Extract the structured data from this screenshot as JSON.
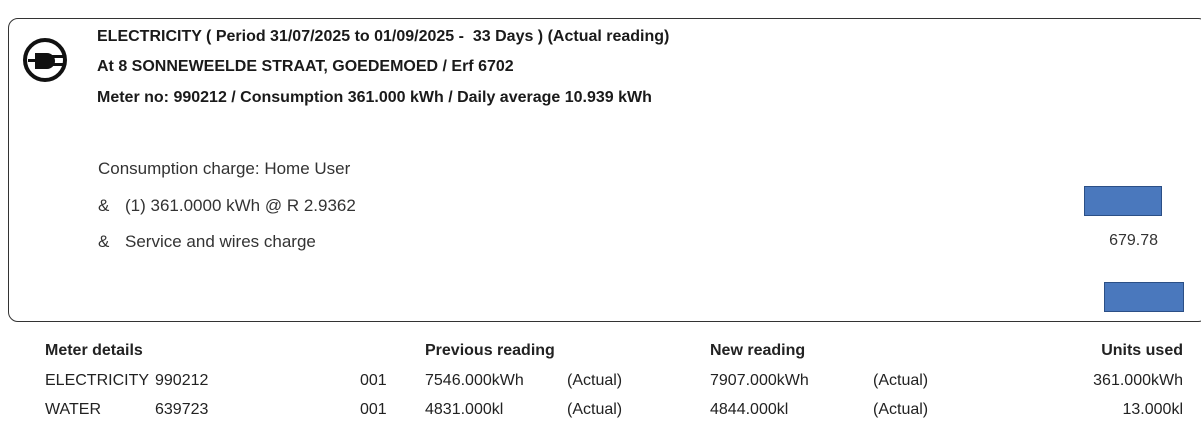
{
  "charge_section": {
    "title": "ELECTRICITY ( Period 31/07/2025 to 01/09/2025 -  33 Days ) (Actual reading)",
    "address": "At 8 SONNEWEELDE STRAAT, GOEDEMOED / Erf 6702",
    "meter_line": "Meter no: 990212 / Consumption 361.000 kWh / Daily average 10.939 kWh",
    "charge_type": "Consumption charge: Home User",
    "lines": [
      {
        "marker": "&",
        "description": "(1) 361.0000 kWh @ R 2.9362"
      },
      {
        "marker": "&",
        "description": "Service and wires charge",
        "amount": "679.78"
      }
    ]
  },
  "meter_table": {
    "headers": [
      "Meter details",
      "Previous reading",
      "New reading",
      "Units used"
    ],
    "rows": [
      [
        "ELECTRICITY",
        "990212",
        "001",
        "7546.000kWh",
        "(Actual)",
        "7907.000kWh",
        "(Actual)",
        "361.000kWh"
      ],
      [
        "WATER",
        "639723",
        "001",
        "4831.000kl",
        "(Actual)",
        "4844.000kl",
        "(Actual)",
        "13.000kl"
      ]
    ]
  }
}
